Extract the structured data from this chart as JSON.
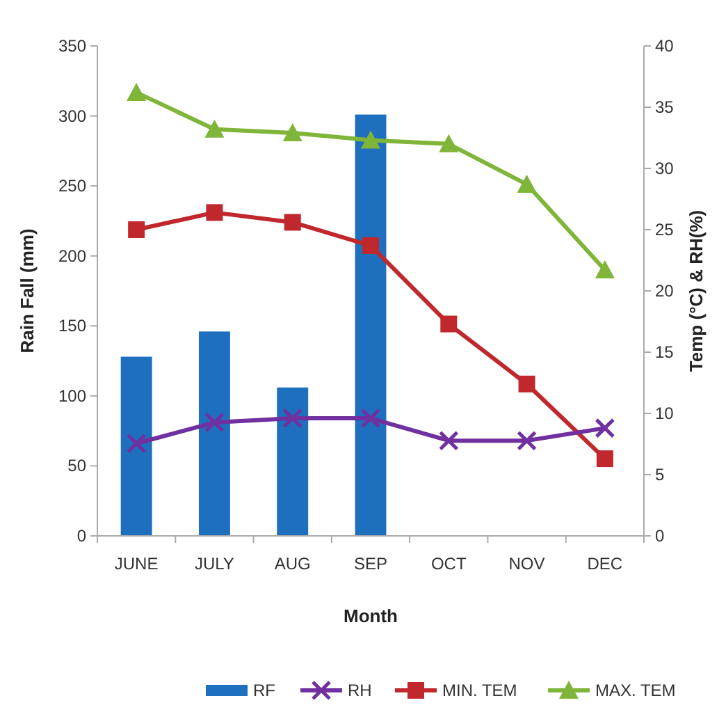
{
  "chart_data": {
    "type": "bar",
    "xlabel": "Month",
    "ylabel": "Rain Fall (mm)",
    "y2label": "Temp (°C) & RH(%)",
    "categories": [
      "JUNE",
      "JULY",
      "AUG",
      "SEP",
      "OCT",
      "NOV",
      "DEC"
    ],
    "series": [
      {
        "name": "RF",
        "color": "#1f6fbf",
        "values": [
          128,
          146,
          106,
          301,
          null,
          null,
          null
        ]
      },
      {
        "name": "RH",
        "type": "line",
        "color": "#7030a0",
        "marker": "cross",
        "values": [
          66,
          81,
          84,
          84,
          68,
          68,
          77
        ]
      },
      {
        "name": "MIN. TEM",
        "type": "line",
        "axis": "y2",
        "color": "#c0282d",
        "marker": "square",
        "values": [
          25,
          26.4,
          25.6,
          23.7,
          17.3,
          12.4,
          6.3
        ]
      },
      {
        "name": "MAX. TEM",
        "type": "line",
        "axis": "y2",
        "color": "#7fb539",
        "marker": "triangle",
        "values": [
          36.2,
          33.2,
          32.9,
          32.3,
          32,
          28.7,
          21.7
        ]
      }
    ],
    "ylim": [
      0,
      350
    ],
    "yticks": [
      0,
      50,
      100,
      150,
      200,
      250,
      300,
      350
    ],
    "y2lim": [
      0,
      40
    ],
    "y2ticks": [
      0,
      5,
      10,
      15,
      20,
      25,
      30,
      35,
      40
    ],
    "grid": false,
    "legend": "bottom"
  }
}
